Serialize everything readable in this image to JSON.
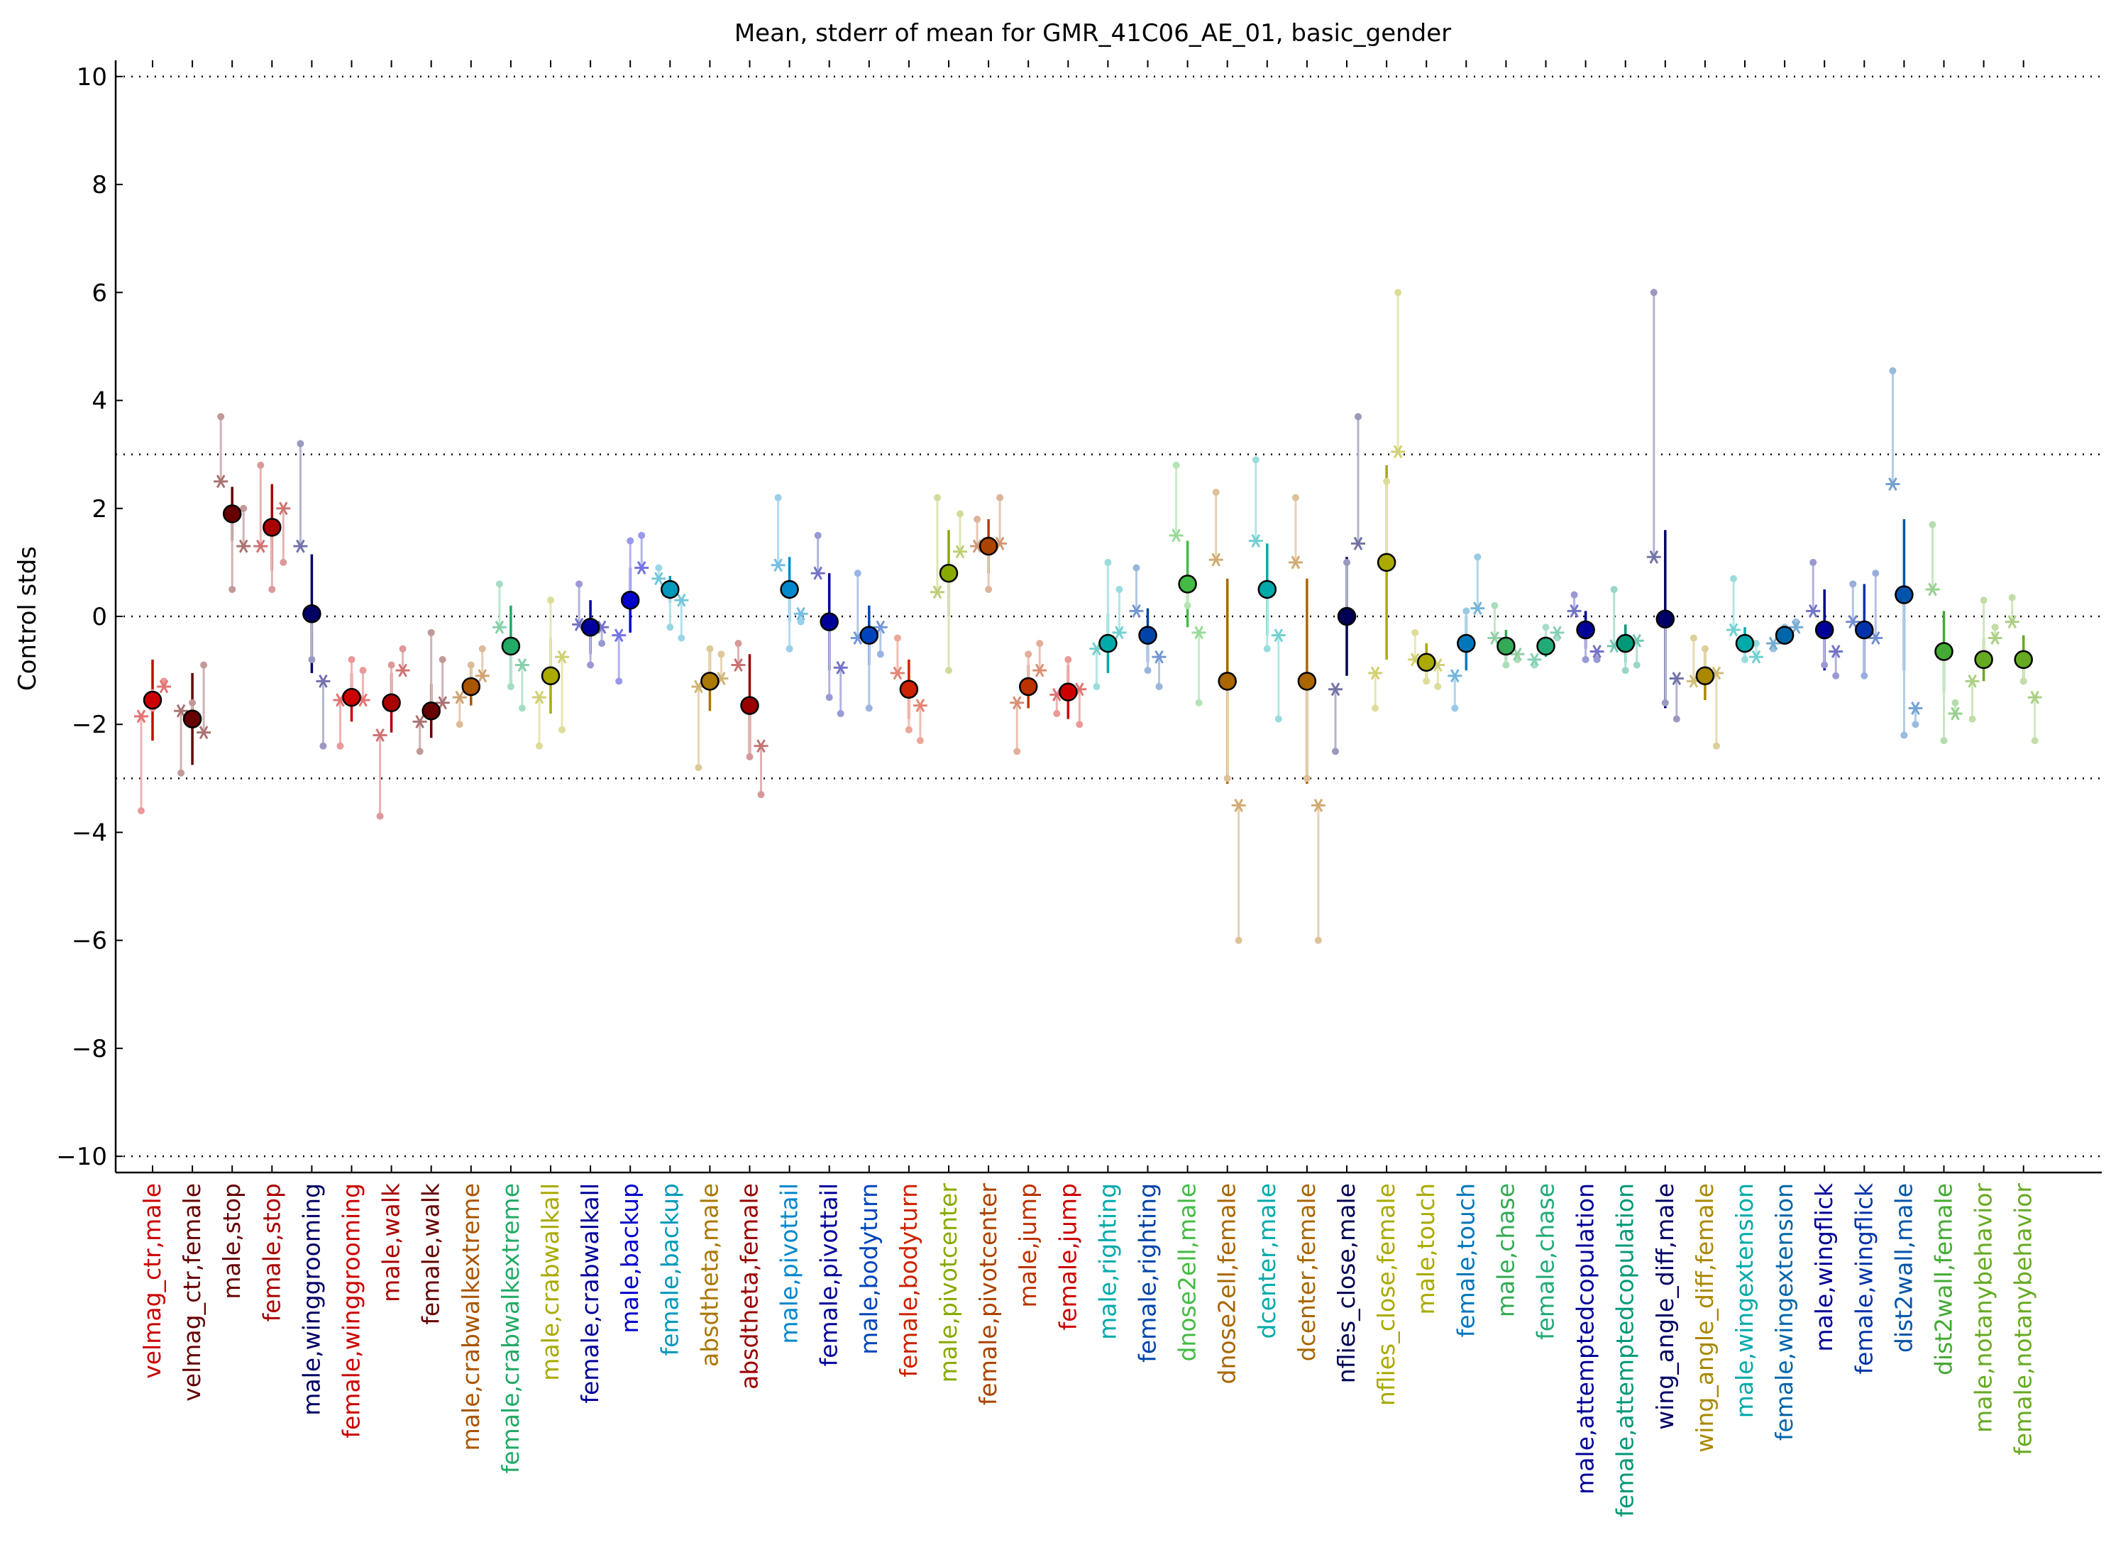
{
  "chart_data": {
    "type": "scatter",
    "title": "Mean, stderr of mean for GMR_41C06_AE_01, basic_gender",
    "ylabel": "Control stds",
    "xlabel": "",
    "ylim": [
      -10.3,
      10.3
    ],
    "yticks": [
      10,
      8,
      6,
      4,
      2,
      0,
      -2,
      -4,
      -6,
      -8,
      -10
    ],
    "ytick_labels": [
      "10",
      "8",
      "6",
      "4",
      "2",
      "0",
      "−2",
      "−4",
      "−6",
      "−8",
      "−10"
    ],
    "reference_lines": [
      10,
      3,
      0,
      -3,
      -10
    ],
    "grid": false,
    "categories": [
      {
        "label": "velmag_ctr,male",
        "color": "#cc0000",
        "mean": -1.55,
        "se": 0.75,
        "reps": [
          -1.85,
          -1.35,
          -1.3
        ],
        "pts": [
          -3.6,
          -1.7,
          -1.2
        ]
      },
      {
        "label": "velmag_ctr,female",
        "color": "#660000",
        "mean": -1.9,
        "se": 0.85,
        "reps": [
          -1.75,
          -1.95,
          -2.15
        ],
        "pts": [
          -2.9,
          -1.6,
          -0.9
        ]
      },
      {
        "label": "male,stop",
        "color": "#660000",
        "mean": 1.9,
        "se": 0.5,
        "reps": [
          2.5,
          1.9,
          1.3
        ],
        "pts": [
          3.7,
          0.5,
          2.0
        ]
      },
      {
        "label": "female,stop",
        "color": "#aa0000",
        "mean": 1.65,
        "se": 0.8,
        "reps": [
          1.3,
          1.65,
          2.0
        ],
        "pts": [
          2.8,
          0.5,
          1.0
        ]
      },
      {
        "label": "male,winggrooming",
        "color": "#000066",
        "mean": 0.05,
        "se": 1.1,
        "reps": [
          1.3,
          0.05,
          -1.2
        ],
        "pts": [
          3.2,
          -0.8,
          -2.4
        ]
      },
      {
        "label": "female,winggrooming",
        "color": "#cc0000",
        "mean": -1.5,
        "se": 0.45,
        "reps": [
          -1.55,
          -1.5,
          -1.55
        ],
        "pts": [
          -2.4,
          -0.8,
          -1.0
        ]
      },
      {
        "label": "male,walk",
        "color": "#aa0000",
        "mean": -1.6,
        "se": 0.55,
        "reps": [
          -2.2,
          -1.6,
          -1.0
        ],
        "pts": [
          -3.7,
          -0.9,
          -0.6
        ]
      },
      {
        "label": "female,walk",
        "color": "#660000",
        "mean": -1.75,
        "se": 0.5,
        "reps": [
          -1.95,
          -1.75,
          -1.6
        ],
        "pts": [
          -2.5,
          -0.3,
          -0.8
        ]
      },
      {
        "label": "male,crabwalkextreme",
        "color": "#aa5500",
        "mean": -1.3,
        "se": 0.35,
        "reps": [
          -1.5,
          -1.3,
          -1.1
        ],
        "pts": [
          -2.0,
          -0.9,
          -0.6
        ]
      },
      {
        "label": "female,crabwalkextreme",
        "color": "#22aa66",
        "mean": -0.55,
        "se": 0.75,
        "reps": [
          -0.2,
          -0.55,
          -0.9
        ],
        "pts": [
          0.6,
          -1.3,
          -1.7
        ]
      },
      {
        "label": "male,crabwalkall",
        "color": "#aaaa00",
        "mean": -1.1,
        "se": 0.7,
        "reps": [
          -1.5,
          -1.1,
          -0.75
        ],
        "pts": [
          -2.4,
          0.3,
          -2.1
        ]
      },
      {
        "label": "female,crabwalkall",
        "color": "#000099",
        "mean": -0.2,
        "se": 0.5,
        "reps": [
          -0.15,
          -0.2,
          -0.2
        ],
        "pts": [
          0.6,
          -0.9,
          -0.5
        ]
      },
      {
        "label": "male,backup",
        "color": "#0000cc",
        "mean": 0.3,
        "se": 0.6,
        "reps": [
          -0.35,
          0.3,
          0.9
        ],
        "pts": [
          -1.2,
          1.4,
          1.5
        ]
      },
      {
        "label": "female,backup",
        "color": "#0099bb",
        "mean": 0.5,
        "se": 0.25,
        "reps": [
          0.7,
          0.5,
          0.3
        ],
        "pts": [
          0.9,
          -0.2,
          -0.4
        ]
      },
      {
        "label": "absdtheta,male",
        "color": "#aa7700",
        "mean": -1.2,
        "se": 0.55,
        "reps": [
          -1.3,
          -1.2,
          -1.15
        ],
        "pts": [
          -2.8,
          -0.6,
          -0.7
        ]
      },
      {
        "label": "absdtheta,female",
        "color": "#990000",
        "mean": -1.65,
        "se": 0.95,
        "reps": [
          -0.9,
          -1.65,
          -2.4
        ],
        "pts": [
          -0.5,
          -2.6,
          -3.3
        ]
      },
      {
        "label": "male,pivottail",
        "color": "#0088cc",
        "mean": 0.5,
        "se": 0.6,
        "reps": [
          0.95,
          0.5,
          0.05
        ],
        "pts": [
          2.2,
          -0.6,
          -0.1
        ]
      },
      {
        "label": "female,pivottail",
        "color": "#000099",
        "mean": -0.1,
        "se": 0.9,
        "reps": [
          0.8,
          -0.1,
          -0.95
        ],
        "pts": [
          1.5,
          -1.5,
          -1.8
        ]
      },
      {
        "label": "male,bodyturn",
        "color": "#0044bb",
        "mean": -0.35,
        "se": 0.55,
        "reps": [
          -0.4,
          -0.35,
          -0.2
        ],
        "pts": [
          0.8,
          -1.7,
          -0.7
        ]
      },
      {
        "label": "female,bodyturn",
        "color": "#cc2200",
        "mean": -1.35,
        "se": 0.55,
        "reps": [
          -1.05,
          -1.35,
          -1.65
        ],
        "pts": [
          -0.4,
          -2.1,
          -2.3
        ]
      },
      {
        "label": "male,pivotcenter",
        "color": "#88aa00",
        "mean": 0.8,
        "se": 0.8,
        "reps": [
          0.45,
          0.8,
          1.2
        ],
        "pts": [
          2.2,
          -1.0,
          1.9
        ]
      },
      {
        "label": "female,pivotcenter",
        "color": "#aa4400",
        "mean": 1.3,
        "se": 0.5,
        "reps": [
          1.3,
          1.3,
          1.35
        ],
        "pts": [
          1.8,
          0.5,
          2.2
        ]
      },
      {
        "label": "male,jump",
        "color": "#bb3300",
        "mean": -1.3,
        "se": 0.4,
        "reps": [
          -1.6,
          -1.3,
          -1.0
        ],
        "pts": [
          -2.5,
          -0.7,
          -0.5
        ]
      },
      {
        "label": "female,jump",
        "color": "#cc0000",
        "mean": -1.4,
        "se": 0.5,
        "reps": [
          -1.45,
          -1.4,
          -1.35
        ],
        "pts": [
          -1.8,
          -0.8,
          -2.0
        ]
      },
      {
        "label": "male,righting",
        "color": "#00aaaa",
        "mean": -0.5,
        "se": 0.55,
        "reps": [
          -0.6,
          -0.5,
          -0.3
        ],
        "pts": [
          -1.3,
          1.0,
          0.5
        ]
      },
      {
        "label": "female,righting",
        "color": "#0044aa",
        "mean": -0.35,
        "se": 0.5,
        "reps": [
          0.1,
          -0.35,
          -0.75
        ],
        "pts": [
          0.9,
          -1.0,
          -1.3
        ]
      },
      {
        "label": "dnose2ell,male",
        "color": "#44bb44",
        "mean": 0.6,
        "se": 0.8,
        "reps": [
          1.5,
          0.6,
          -0.3
        ],
        "pts": [
          2.8,
          0.2,
          -1.6
        ]
      },
      {
        "label": "dnose2ell,female",
        "color": "#aa6600",
        "mean": -1.2,
        "se": 1.9,
        "reps": [
          1.05,
          -1.2,
          -3.5
        ],
        "pts": [
          2.3,
          -3.0,
          -6.0
        ]
      },
      {
        "label": "dcenter,male",
        "color": "#00aaaa",
        "mean": 0.5,
        "se": 0.85,
        "reps": [
          1.4,
          0.5,
          -0.35
        ],
        "pts": [
          2.9,
          -0.6,
          -1.9
        ]
      },
      {
        "label": "dcenter,female",
        "color": "#aa6600",
        "mean": -1.2,
        "se": 1.9,
        "reps": [
          1.0,
          -1.2,
          -3.5
        ],
        "pts": [
          2.2,
          -3.0,
          -6.0
        ]
      },
      {
        "label": "nflies_close,male",
        "color": "#000055",
        "mean": 0.0,
        "se": 1.1,
        "reps": [
          -1.35,
          0.0,
          1.35
        ],
        "pts": [
          -2.5,
          1.0,
          3.7
        ]
      },
      {
        "label": "nflies_close,female",
        "color": "#aaaa00",
        "mean": 1.0,
        "se": 1.8,
        "reps": [
          -1.05,
          1.0,
          3.05
        ],
        "pts": [
          -1.7,
          2.5,
          6.0
        ]
      },
      {
        "label": "male,touch",
        "color": "#aaaa00",
        "mean": -0.85,
        "se": 0.35,
        "reps": [
          -0.8,
          -0.85,
          -0.9
        ],
        "pts": [
          -0.3,
          -1.2,
          -1.3
        ]
      },
      {
        "label": "female,touch",
        "color": "#0077bb",
        "mean": -0.5,
        "se": 0.5,
        "reps": [
          -1.1,
          -0.5,
          0.15
        ],
        "pts": [
          -1.7,
          0.1,
          1.1
        ]
      },
      {
        "label": "male,chase",
        "color": "#33aa55",
        "mean": -0.55,
        "se": 0.3,
        "reps": [
          -0.4,
          -0.55,
          -0.7
        ],
        "pts": [
          0.2,
          -0.9,
          -0.8
        ]
      },
      {
        "label": "female,chase",
        "color": "#22aa77",
        "mean": -0.55,
        "se": 0.2,
        "reps": [
          -0.8,
          -0.55,
          -0.3
        ],
        "pts": [
          -0.9,
          -0.2,
          -0.4
        ]
      },
      {
        "label": "male,attemptedcopulation",
        "color": "#000099",
        "mean": -0.25,
        "se": 0.35,
        "reps": [
          0.1,
          -0.25,
          -0.65
        ],
        "pts": [
          0.4,
          -0.8,
          -0.8
        ]
      },
      {
        "label": "female,attemptedcopulation",
        "color": "#009977",
        "mean": -0.5,
        "se": 0.35,
        "reps": [
          -0.55,
          -0.5,
          -0.45
        ],
        "pts": [
          0.5,
          -1.0,
          -0.9
        ]
      },
      {
        "label": "wing_angle_diff,male",
        "color": "#000066",
        "mean": -0.05,
        "se": 1.65,
        "reps": [
          1.1,
          -0.05,
          -1.15
        ],
        "pts": [
          6.0,
          -1.6,
          -1.9
        ]
      },
      {
        "label": "wing_angle_diff,female",
        "color": "#aa8800",
        "mean": -1.1,
        "se": 0.45,
        "reps": [
          -1.2,
          -1.1,
          -1.05
        ],
        "pts": [
          -0.4,
          -0.6,
          -2.4
        ]
      },
      {
        "label": "male,wingextension",
        "color": "#00aaaa",
        "mean": -0.5,
        "se": 0.3,
        "reps": [
          -0.25,
          -0.5,
          -0.75
        ],
        "pts": [
          0.7,
          -0.8,
          -0.5
        ]
      },
      {
        "label": "female,wingextension",
        "color": "#0066aa",
        "mean": -0.35,
        "se": 0.15,
        "reps": [
          -0.5,
          -0.35,
          -0.2
        ],
        "pts": [
          -0.6,
          -0.2,
          -0.1
        ]
      },
      {
        "label": "male,wingflick",
        "color": "#000099",
        "mean": -0.25,
        "se": 0.75,
        "reps": [
          0.1,
          -0.25,
          -0.65
        ],
        "pts": [
          1.0,
          -0.9,
          -1.1
        ]
      },
      {
        "label": "female,wingflick",
        "color": "#0033aa",
        "mean": -0.25,
        "se": 0.85,
        "reps": [
          -0.1,
          -0.25,
          -0.4
        ],
        "pts": [
          0.6,
          -1.1,
          0.8
        ]
      },
      {
        "label": "dist2wall,male",
        "color": "#0055aa",
        "mean": 0.4,
        "se": 1.4,
        "reps": [
          2.45,
          0.4,
          -1.7
        ],
        "pts": [
          4.55,
          -2.2,
          -2.0
        ]
      },
      {
        "label": "dist2wall,female",
        "color": "#44aa33",
        "mean": -0.65,
        "se": 0.75,
        "reps": [
          0.5,
          -0.65,
          -1.8
        ],
        "pts": [
          1.7,
          -2.3,
          -1.6
        ]
      },
      {
        "label": "male,notanybehavior",
        "color": "#66aa22",
        "mean": -0.8,
        "se": 0.4,
        "reps": [
          -1.2,
          -0.8,
          -0.4
        ],
        "pts": [
          -1.9,
          0.3,
          -0.2
        ]
      },
      {
        "label": "female,notanybehavior",
        "color": "#66aa22",
        "mean": -0.8,
        "se": 0.45,
        "reps": [
          -0.1,
          -0.8,
          -1.5
        ],
        "pts": [
          0.35,
          -1.2,
          -2.3
        ]
      }
    ]
  }
}
